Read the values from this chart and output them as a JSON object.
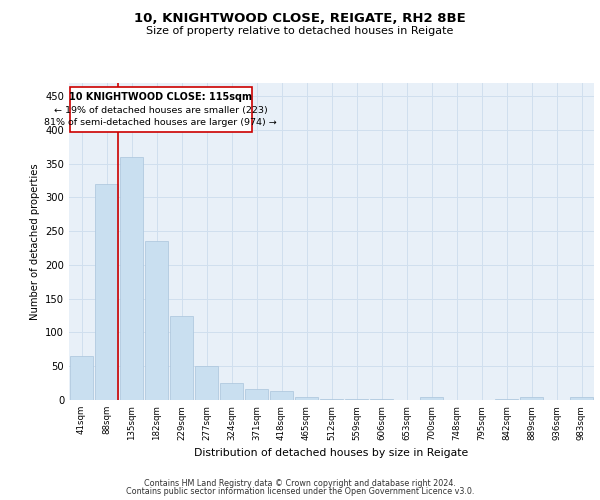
{
  "title1": "10, KNIGHTWOOD CLOSE, REIGATE, RH2 8BE",
  "title2": "Size of property relative to detached houses in Reigate",
  "xlabel": "Distribution of detached houses by size in Reigate",
  "ylabel": "Number of detached properties",
  "categories": [
    "41sqm",
    "88sqm",
    "135sqm",
    "182sqm",
    "229sqm",
    "277sqm",
    "324sqm",
    "371sqm",
    "418sqm",
    "465sqm",
    "512sqm",
    "559sqm",
    "606sqm",
    "653sqm",
    "700sqm",
    "748sqm",
    "795sqm",
    "842sqm",
    "889sqm",
    "936sqm",
    "983sqm"
  ],
  "values": [
    65,
    320,
    360,
    235,
    125,
    50,
    25,
    16,
    13,
    5,
    2,
    1,
    1,
    0,
    4,
    0,
    0,
    2,
    5,
    0,
    4
  ],
  "bar_color": "#c9dff0",
  "bar_edge_color": "#aac4dc",
  "grid_color": "#d0dfee",
  "background_color": "#e8f0f8",
  "annotation_box_color": "#ffffff",
  "annotation_border_color": "#cc0000",
  "line_color": "#cc0000",
  "annotation_text_line1": "10 KNIGHTWOOD CLOSE: 115sqm",
  "annotation_text_line2": "← 19% of detached houses are smaller (223)",
  "annotation_text_line3": "81% of semi-detached houses are larger (974) →",
  "ylim": [
    0,
    470
  ],
  "yticks": [
    0,
    50,
    100,
    150,
    200,
    250,
    300,
    350,
    400,
    450
  ],
  "footer1": "Contains HM Land Registry data © Crown copyright and database right 2024.",
  "footer2": "Contains public sector information licensed under the Open Government Licence v3.0."
}
